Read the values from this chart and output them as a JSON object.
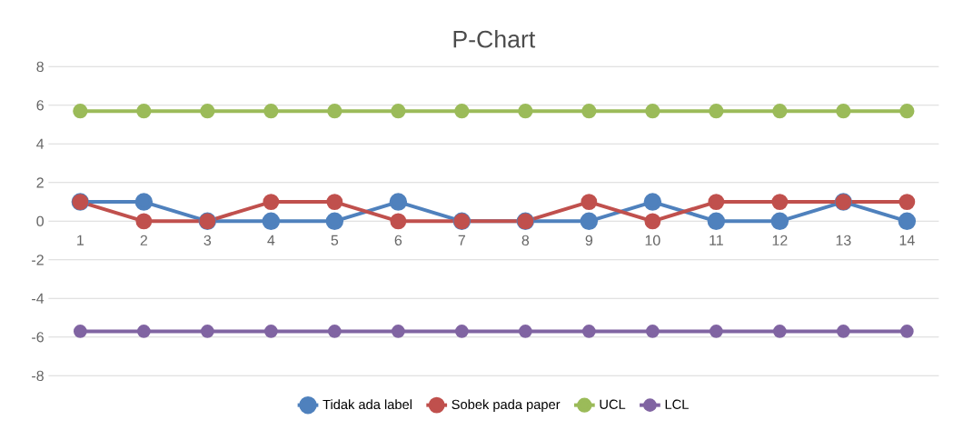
{
  "chart_data": {
    "type": "line",
    "title": "P-Chart",
    "categories": [
      "1",
      "2",
      "3",
      "4",
      "5",
      "6",
      "7",
      "8",
      "9",
      "10",
      "11",
      "12",
      "13",
      "14"
    ],
    "series": [
      {
        "name": "Tidak ada label",
        "color": "#4f81bd",
        "values": [
          1,
          1,
          0,
          0,
          0,
          1,
          0,
          0,
          0,
          1,
          0,
          0,
          1,
          0
        ]
      },
      {
        "name": "Sobek pada paper",
        "color": "#c0504d",
        "values": [
          1,
          0,
          0,
          1,
          1,
          0,
          0,
          0,
          1,
          0,
          1,
          1,
          1,
          1
        ]
      },
      {
        "name": "UCL",
        "color": "#9bbb59",
        "values": [
          5.7,
          5.7,
          5.7,
          5.7,
          5.7,
          5.7,
          5.7,
          5.7,
          5.7,
          5.7,
          5.7,
          5.7,
          5.7,
          5.7
        ]
      },
      {
        "name": "LCL",
        "color": "#8064a2",
        "values": [
          -5.7,
          -5.7,
          -5.7,
          -5.7,
          -5.7,
          -5.7,
          -5.7,
          -5.7,
          -5.7,
          -5.7,
          -5.7,
          -5.7,
          -5.7,
          -5.7
        ]
      }
    ],
    "ylim": [
      -8,
      8
    ],
    "yticks": [
      -8,
      -6,
      -4,
      -2,
      0,
      2,
      4,
      6,
      8
    ],
    "grid": "y",
    "legend": "bottom",
    "marker": "circle",
    "line_style": "solid"
  }
}
